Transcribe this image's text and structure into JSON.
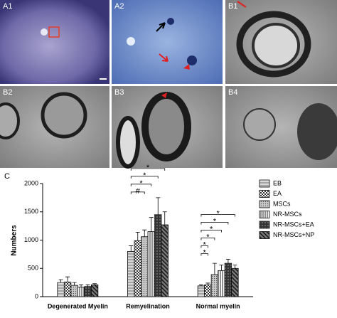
{
  "panel_labels": [
    "A1",
    "A2",
    "B1",
    "B2",
    "B3",
    "B4"
  ],
  "chart_data": {
    "type": "bar",
    "panel_label": "C",
    "categories": [
      "Degenerated Myelin",
      "Remyelination",
      "Normal myelin"
    ],
    "ylabel": "Numbers",
    "ylim": [
      0,
      2000
    ],
    "yticks": [
      0,
      500,
      1000,
      1500,
      2000
    ],
    "series": [
      {
        "name": "EB",
        "color": "#d9d9d9",
        "values": [
          250,
          800,
          190
        ],
        "errors": [
          50,
          100,
          20
        ]
      },
      {
        "name": "EA",
        "color": "#ffffff",
        "values": [
          260,
          990,
          210
        ],
        "errors": [
          90,
          150,
          30
        ]
      },
      {
        "name": "MSCs",
        "color": "#c8c8c8",
        "values": [
          200,
          1060,
          390
        ],
        "errors": [
          50,
          120,
          200
        ]
      },
      {
        "name": "NR-MSCs",
        "color": "#ffffff",
        "values": [
          170,
          1150,
          460
        ],
        "errors": [
          40,
          250,
          100
        ]
      },
      {
        "name": "NR-MSCs+EA",
        "color": "#4a4a4a",
        "values": [
          180,
          1450,
          590
        ],
        "errors": [
          30,
          300,
          70
        ]
      },
      {
        "name": "NR-MSCs+NP",
        "color": "#7a7a7a",
        "values": [
          210,
          1270,
          500
        ],
        "errors": [
          20,
          230,
          60
        ]
      }
    ],
    "significance": [
      [],
      [
        "*",
        "*",
        "*",
        "#"
      ],
      [
        "*",
        "*",
        "*",
        "*",
        "*",
        "*"
      ]
    ]
  }
}
